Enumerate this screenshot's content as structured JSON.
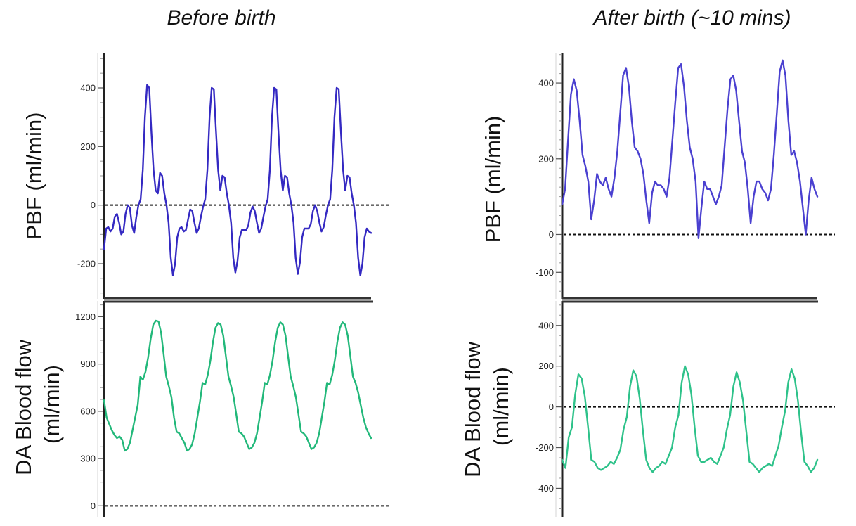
{
  "chart_data": [
    {
      "type": "line",
      "title": "Before birth",
      "ylabel": "PBF (ml/min)",
      "ylim": [
        -320,
        520
      ],
      "yticks": [
        -200,
        0,
        200,
        400
      ],
      "reference_line": 0,
      "color": "#3429c2",
      "series": [
        {
          "values": [
            -150,
            -80,
            -75,
            -90,
            -80,
            -40,
            -30,
            -60,
            -100,
            -90,
            -30,
            0,
            -10,
            -70,
            -95,
            -40,
            0,
            20,
            120,
            300,
            410,
            400,
            250,
            120,
            50,
            40,
            110,
            100,
            40,
            0,
            -60,
            -180,
            -240,
            -200,
            -110,
            -80,
            -75,
            -90,
            -85,
            -50,
            -15,
            -20,
            -60,
            -95,
            -80,
            -40,
            -5,
            20,
            120,
            300,
            400,
            395,
            250,
            120,
            50,
            100,
            95,
            40,
            0,
            -60,
            -180,
            -230,
            -190,
            -110,
            -85,
            -85,
            -85,
            -70,
            -25,
            -5,
            -20,
            -60,
            -95,
            -80,
            -40,
            -5,
            20,
            120,
            300,
            400,
            395,
            250,
            120,
            50,
            100,
            95,
            40,
            0,
            -60,
            -180,
            -235,
            -195,
            -110,
            -80,
            -80,
            -80,
            -65,
            -20,
            0,
            -20,
            -60,
            -90,
            -75,
            -35,
            0,
            20,
            120,
            300,
            400,
            395,
            250,
            120,
            50,
            100,
            95,
            40,
            0,
            -60,
            -180,
            -240,
            -200,
            -110,
            -80,
            -90,
            -95
          ]
        }
      ]
    },
    {
      "type": "line",
      "title": "",
      "ylabel": "DA Blood flow (ml/min)",
      "ylim": [
        -70,
        1300
      ],
      "yticks": [
        0,
        300,
        600,
        900,
        1200
      ],
      "reference_line": 0,
      "color": "#22b87a",
      "series": [
        {
          "values": [
            670,
            560,
            520,
            480,
            450,
            430,
            440,
            420,
            350,
            360,
            400,
            480,
            560,
            640,
            820,
            800,
            850,
            940,
            1060,
            1150,
            1175,
            1170,
            1100,
            960,
            820,
            760,
            690,
            560,
            470,
            460,
            430,
            400,
            350,
            360,
            390,
            460,
            560,
            660,
            780,
            770,
            830,
            920,
            1040,
            1130,
            1160,
            1150,
            1080,
            950,
            820,
            760,
            690,
            580,
            470,
            460,
            440,
            400,
            360,
            370,
            400,
            460,
            560,
            660,
            780,
            770,
            830,
            920,
            1040,
            1130,
            1165,
            1150,
            1080,
            950,
            820,
            760,
            690,
            580,
            470,
            460,
            440,
            400,
            360,
            370,
            400,
            460,
            560,
            660,
            780,
            770,
            830,
            920,
            1040,
            1130,
            1165,
            1150,
            1080,
            950,
            820,
            780,
            720,
            640,
            560,
            500,
            460,
            430
          ]
        }
      ]
    },
    {
      "type": "line",
      "title": "After birth (~10 mins)",
      "ylabel": "PBF (ml/min)",
      "ylim": [
        -170,
        480
      ],
      "yticks": [
        -100,
        0,
        200,
        400
      ],
      "reference_line": 0,
      "color": "#4a40d0",
      "series": [
        {
          "values": [
            80,
            120,
            250,
            370,
            410,
            380,
            300,
            210,
            180,
            140,
            40,
            90,
            160,
            140,
            130,
            150,
            120,
            100,
            150,
            220,
            320,
            420,
            440,
            390,
            300,
            230,
            220,
            200,
            160,
            90,
            30,
            110,
            140,
            130,
            130,
            120,
            100,
            150,
            250,
            350,
            440,
            450,
            390,
            300,
            230,
            200,
            140,
            -10,
            70,
            140,
            120,
            120,
            100,
            80,
            100,
            130,
            230,
            330,
            410,
            420,
            380,
            300,
            220,
            190,
            120,
            30,
            100,
            140,
            140,
            120,
            110,
            90,
            120,
            210,
            320,
            430,
            460,
            420,
            300,
            210,
            220,
            190,
            140,
            70,
            0,
            90,
            150,
            120,
            100
          ]
        }
      ]
    },
    {
      "type": "line",
      "title": "",
      "ylabel": "DA Blood flow (ml/min)",
      "ylim": [
        -540,
        520
      ],
      "yticks": [
        -400,
        -200,
        0,
        200,
        400
      ],
      "reference_line": 0,
      "color": "#2ec28a",
      "series": [
        {
          "values": [
            -260,
            -300,
            -150,
            -100,
            60,
            160,
            140,
            50,
            -100,
            -260,
            -270,
            -300,
            -310,
            -300,
            -290,
            -270,
            -280,
            -250,
            -210,
            -110,
            -50,
            100,
            180,
            150,
            40,
            -120,
            -260,
            -300,
            -320,
            -300,
            -290,
            -270,
            -280,
            -240,
            -200,
            -100,
            -40,
            120,
            200,
            160,
            60,
            -100,
            -240,
            -270,
            -270,
            -260,
            -250,
            -270,
            -280,
            -240,
            -200,
            -110,
            -40,
            100,
            170,
            120,
            30,
            -120,
            -270,
            -280,
            -300,
            -320,
            -300,
            -290,
            -280,
            -290,
            -240,
            -190,
            -100,
            -20,
            120,
            185,
            140,
            30,
            -130,
            -270,
            -290,
            -320,
            -300,
            -260
          ]
        }
      ]
    }
  ]
}
